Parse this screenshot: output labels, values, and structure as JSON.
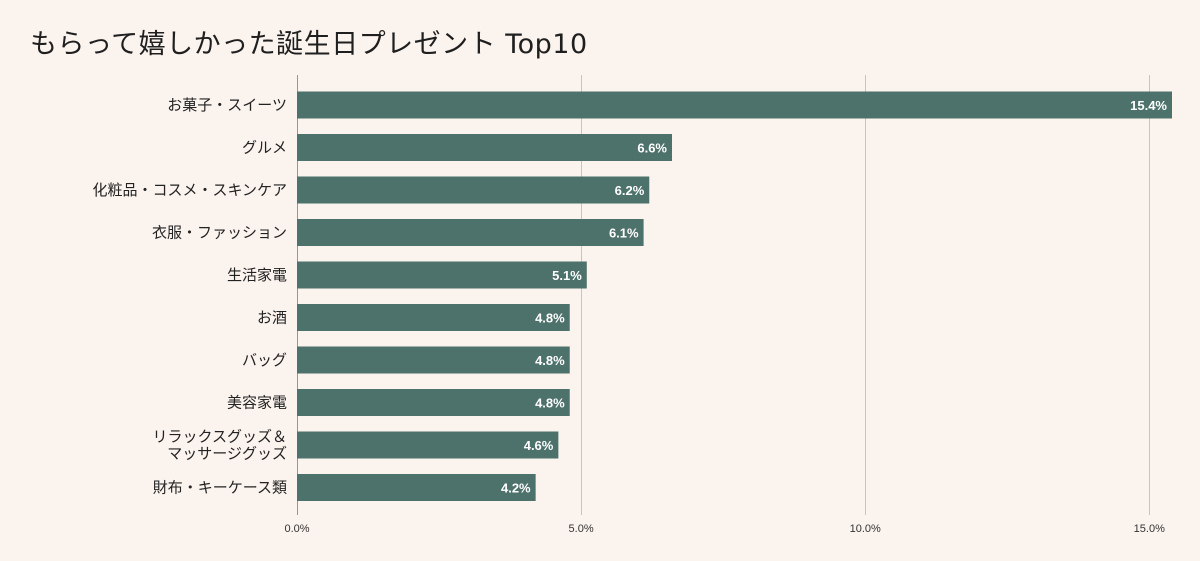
{
  "chart_data": {
    "type": "bar",
    "orientation": "horizontal",
    "title": "もらって嬉しかった誕生日プレゼント Top10",
    "categories": [
      [
        "お菓子・スイーツ"
      ],
      [
        "グルメ"
      ],
      [
        "化粧品・コスメ・スキンケア"
      ],
      [
        "衣服・ファッション"
      ],
      [
        "生活家電"
      ],
      [
        "お酒"
      ],
      [
        "バッグ"
      ],
      [
        "美容家電"
      ],
      [
        "リラックスグッズ＆",
        "マッサージグッズ"
      ],
      [
        "財布・キーケース類"
      ]
    ],
    "values": [
      15.4,
      6.6,
      6.2,
      6.1,
      5.1,
      4.8,
      4.8,
      4.8,
      4.6,
      4.2
    ],
    "value_labels": [
      "15.4%",
      "6.6%",
      "6.2%",
      "6.1%",
      "5.1%",
      "4.8%",
      "4.8%",
      "4.8%",
      "4.6%",
      "4.2%"
    ],
    "xlim": [
      0,
      15.4
    ],
    "xticks": [
      0,
      5,
      10,
      15
    ],
    "xtick_labels": [
      "0.0%",
      "5.0%",
      "10.0%",
      "15.0%"
    ],
    "xlabel": "",
    "ylabel": "",
    "grid": true,
    "bar_color": "#4d716b",
    "background_color": "#fbf3ee"
  }
}
